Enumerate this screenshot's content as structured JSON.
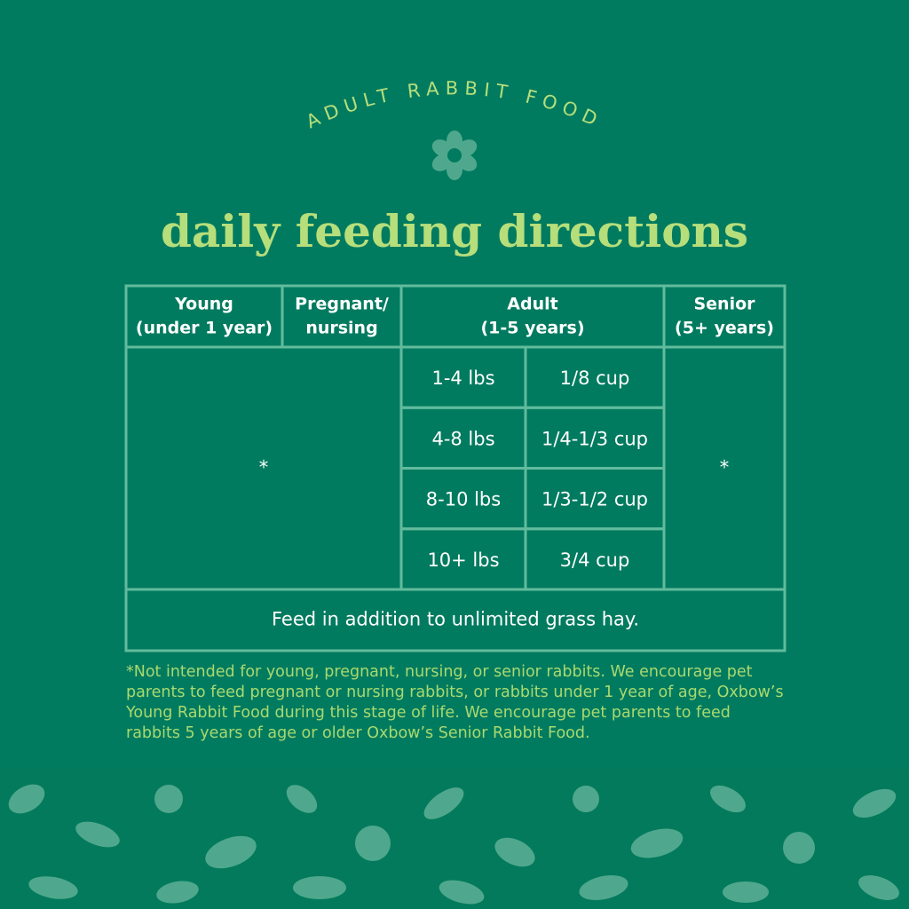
{
  "header": {
    "label": "ADULT RABBIT FOOD",
    "title": "daily feeding directions"
  },
  "table": {
    "headers": [
      [
        "Young",
        "(under 1 year)"
      ],
      [
        "Pregnant/",
        "nursing"
      ],
      [
        "Adult",
        "(1-5 years)"
      ],
      [
        "Senior",
        "(5+ years)"
      ]
    ],
    "young_pregnant_note": "*",
    "senior_note": "*",
    "rows": [
      [
        "1-4 lbs",
        "1/8 cup"
      ],
      [
        "4-8 lbs",
        "1/4-1/3 cup"
      ],
      [
        "8-10 lbs",
        "1/3-1/2 cup"
      ],
      [
        "10+ lbs",
        "3/4 cup"
      ]
    ],
    "footer": "Feed in addition to unlimited grass hay."
  },
  "footnote": "*Not intended for young, pregnant, nursing, or senior rabbits. We encourage pet parents to feed pregnant or nursing rabbits, or rabbits under 1 year of age, Oxbow’s Young Rabbit Food during this stage of life. We encourage pet parents to feed rabbits 5 years of age or older Oxbow’s Senior Rabbit Food."
}
